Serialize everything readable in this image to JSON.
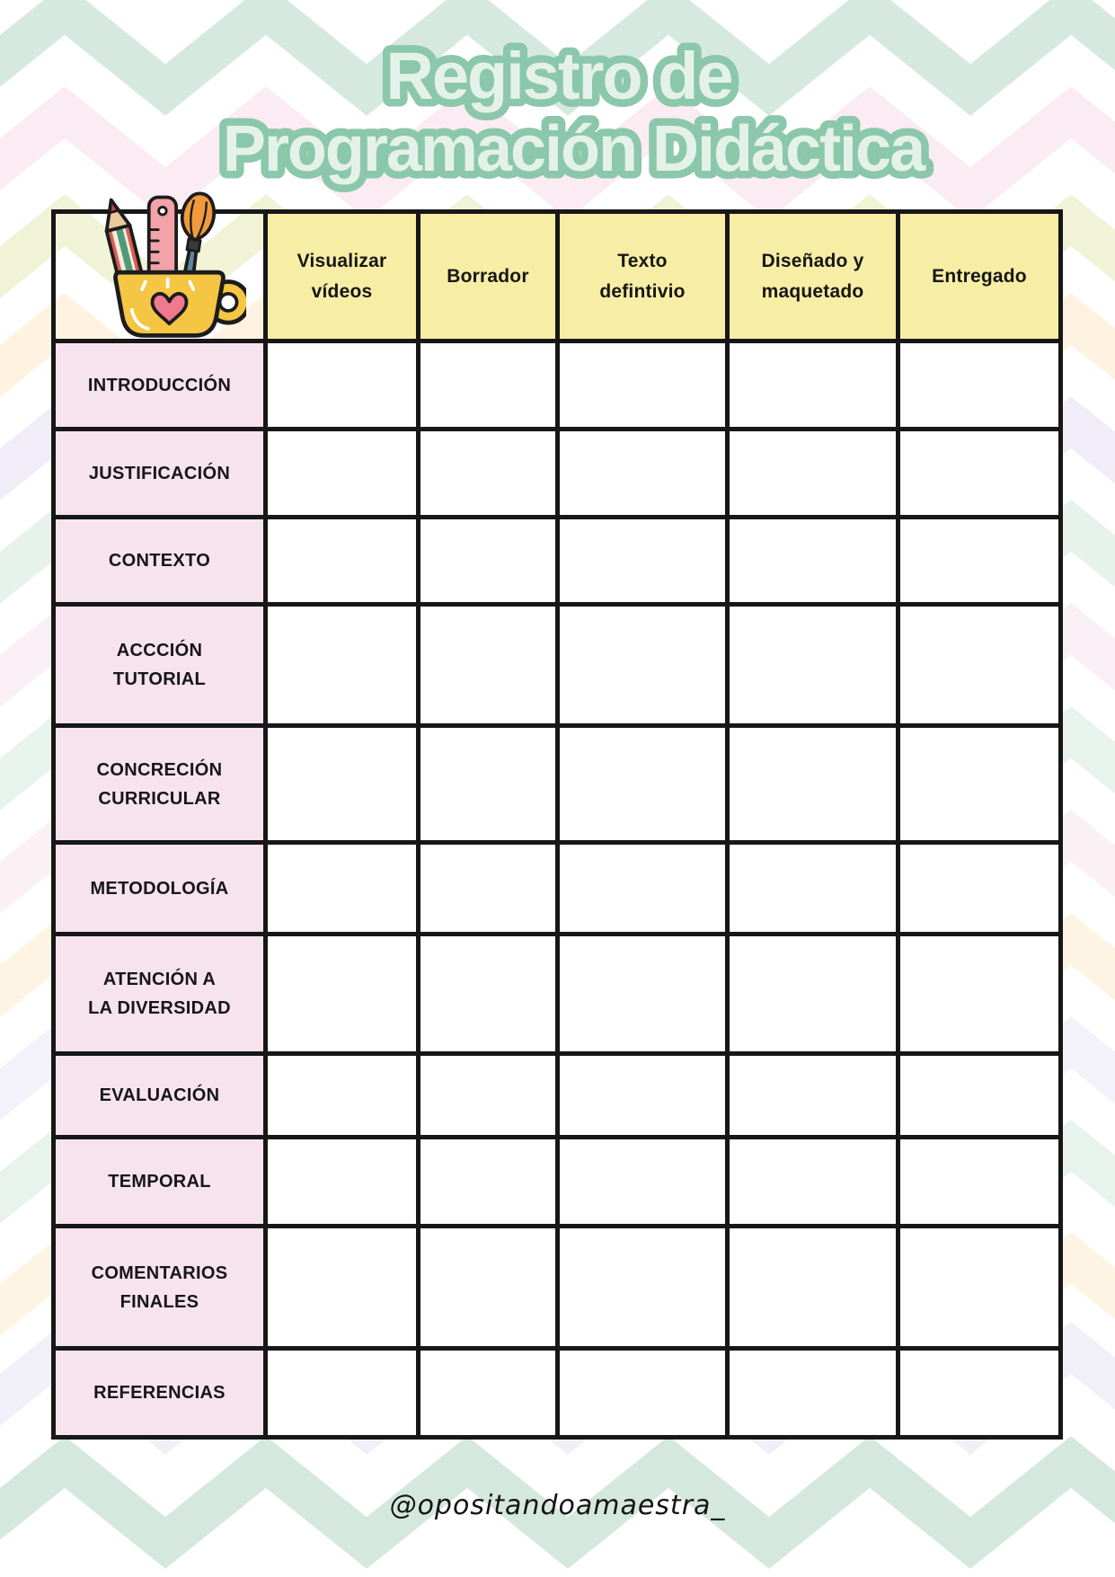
{
  "page": {
    "title_line1": "Registro de",
    "title_line2": "Programación Didáctica",
    "footer_handle": "@opositandoamaestra_"
  },
  "table": {
    "columns": [
      "Visualizar\nvídeos",
      "Borrador",
      "Texto\ndefintivio",
      "Diseñado y\nmaquetado",
      "Entregado"
    ],
    "rows": [
      "INTRODUCCIÓN",
      "JUSTIFICACIÓN",
      "CONTEXTO",
      "ACCCIÓN\nTUTORIAL",
      "CONCRECIÓN\nCURRICULAR",
      "METODOLOGÍA",
      "ATENCIÓN A\nLA DIVERSIDAD",
      "EVALUACIÓN",
      "TEMPORAL",
      "COMENTARIOS\nFINALES",
      "REFERENCIAS"
    ]
  },
  "colors": {
    "header_bg": "#f7eda4",
    "row_label_bg": "#f7e3ee",
    "cell_bg": "#ffffff",
    "border": "#171717",
    "title_fill": "#e4f1e9",
    "title_stroke": "#8bc7ab",
    "footer_text": "#141414",
    "chevrons": {
      "mint": "#cfe5da",
      "pink": "#f6dfe9",
      "olive": "#e6e9b6",
      "peach": "#fbe7c2",
      "lavender": "#e4dff2"
    }
  },
  "icons": {
    "pencil_cup": "pencil-cup-icon"
  }
}
